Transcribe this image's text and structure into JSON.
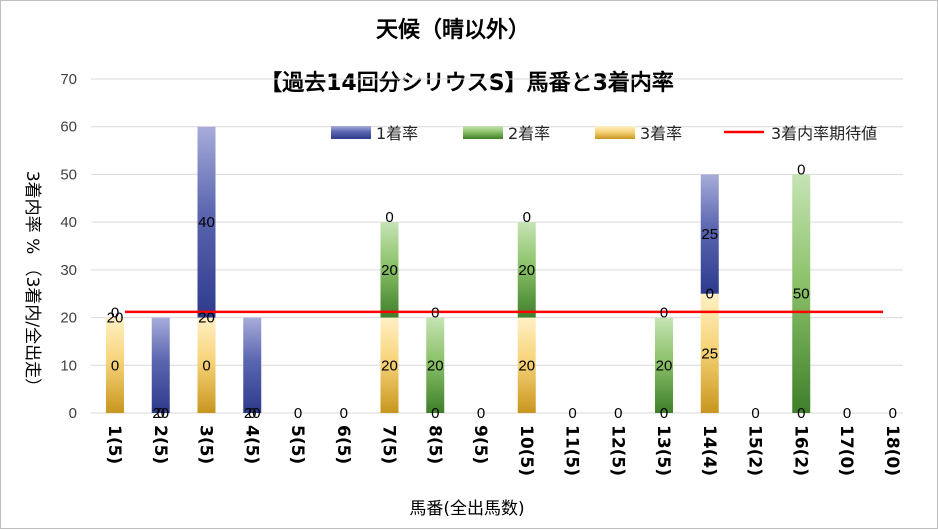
{
  "chart_data": {
    "type": "bar",
    "stacked": true,
    "title": "天候（晴以外）",
    "subtitle": "【過去14回分シリウスS】馬番と3着内率",
    "xlabel": "馬番(全出馬数)",
    "ylabel": "3着内率 %  （3着内/全出走）",
    "ylim": [
      0,
      70
    ],
    "yticks": [
      "0",
      "10",
      "20",
      "30",
      "40",
      "50",
      "60",
      "70"
    ],
    "grid": true,
    "legend_position": "top",
    "categories": [
      "1(5)",
      "2(5)",
      "3(5)",
      "4(5)",
      "5(5)",
      "6(5)",
      "7(5)",
      "8(5)",
      "9(5)",
      "10(5)",
      "11(5)",
      "12(5)",
      "13(5)",
      "14(4)",
      "15(2)",
      "16(2)",
      "17(0)",
      "18(0)"
    ],
    "series": [
      {
        "name": "3着率",
        "color": "#d4a52c",
        "values": [
          20,
          0,
          20,
          0,
          0,
          0,
          20,
          0,
          0,
          20,
          0,
          0,
          0,
          25,
          0,
          0,
          0,
          0
        ]
      },
      {
        "name": "2着率",
        "color": "#5e9a3c",
        "values": [
          0,
          0,
          0,
          0,
          0,
          0,
          20,
          20,
          0,
          20,
          0,
          0,
          20,
          0,
          0,
          50,
          0,
          0
        ]
      },
      {
        "name": "1着率",
        "color": "#3a4a9a",
        "values": [
          0,
          20,
          40,
          20,
          0,
          0,
          0,
          0,
          0,
          0,
          0,
          0,
          0,
          25,
          0,
          0,
          0,
          0
        ]
      }
    ],
    "data_labels": [
      [
        "0",
        "20",
        "0"
      ],
      [
        "0",
        "20"
      ],
      [
        "0",
        "20",
        "40"
      ],
      [
        "0",
        "20"
      ],
      [
        "0"
      ],
      [
        "0"
      ],
      [
        "20",
        "20",
        "0"
      ],
      [
        "0",
        "20",
        "0"
      ],
      [
        "0"
      ],
      [
        "20",
        "20",
        "0"
      ],
      [
        "0"
      ],
      [
        "0"
      ],
      [
        "0",
        "20",
        "0"
      ],
      [
        "25",
        "0",
        "25"
      ],
      [
        "0"
      ],
      [
        "0",
        "50",
        "0"
      ],
      [
        "0"
      ],
      [
        "0"
      ]
    ],
    "reference_line": {
      "name": "3着内率期待値",
      "value": 21.2,
      "color": "#ff0000"
    }
  }
}
